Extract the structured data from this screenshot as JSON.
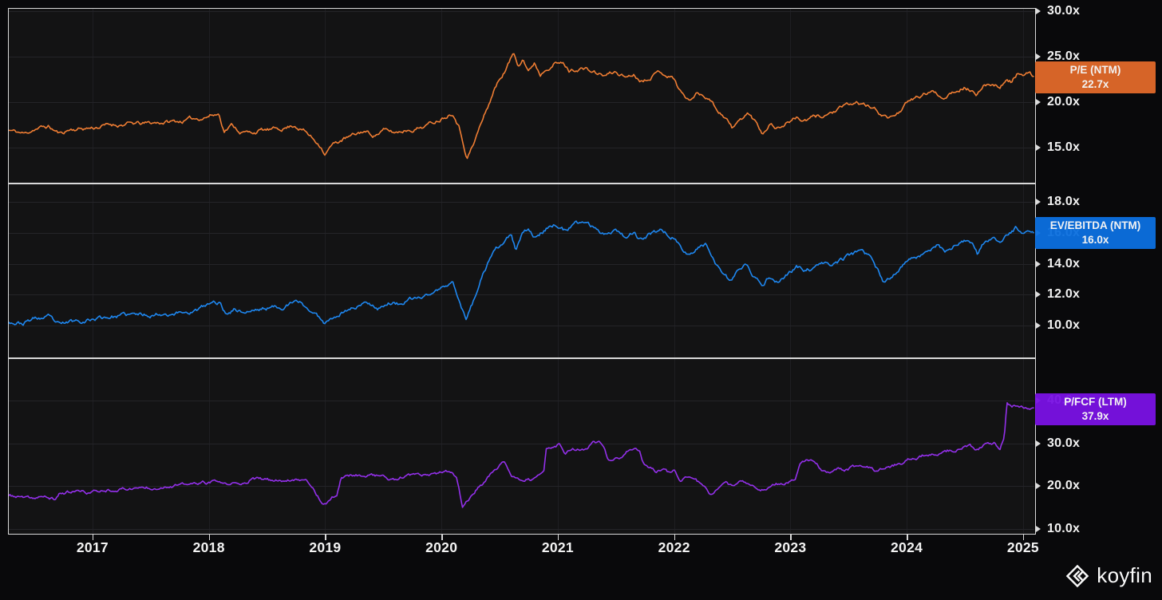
{
  "watermark": {
    "brand": "koyfin"
  },
  "x_axis": {
    "xlim": [
      2016.28,
      2025.09
    ],
    "ticks": [
      {
        "v": 2017,
        "label": "2017"
      },
      {
        "v": 2018,
        "label": "2018"
      },
      {
        "v": 2019,
        "label": "2019"
      },
      {
        "v": 2020,
        "label": "2020"
      },
      {
        "v": 2021,
        "label": "2021"
      },
      {
        "v": 2022,
        "label": "2022"
      },
      {
        "v": 2023,
        "label": "2023"
      },
      {
        "v": 2024,
        "label": "2024"
      },
      {
        "v": 2025,
        "label": "2025"
      }
    ]
  },
  "chart_data": [
    {
      "type": "line",
      "name": "P/E (NTM)",
      "color": "#ef7d33",
      "badge": {
        "bg": "#e2692a",
        "label": "P/E (NTM)",
        "value": "22.7x"
      },
      "current": 22.7,
      "ylim": [
        11.14,
        30.35
      ],
      "y_ticks": [
        {
          "v": 30,
          "label": "30.0x"
        },
        {
          "v": 25,
          "label": "25.0x"
        },
        {
          "v": 20,
          "label": "20.0x"
        },
        {
          "v": 15,
          "label": "15.0x"
        }
      ],
      "anchors_x": [
        2016.28,
        2016.42,
        2016.5,
        2016.62,
        2016.72,
        2016.8,
        2016.9,
        2017.0,
        2017.15,
        2017.3,
        2017.45,
        2017.6,
        2017.75,
        2017.9,
        2018.02,
        2018.09,
        2018.13,
        2018.2,
        2018.27,
        2018.35,
        2018.45,
        2018.55,
        2018.65,
        2018.74,
        2018.82,
        2018.9,
        2018.96,
        2019.0,
        2019.05,
        2019.15,
        2019.25,
        2019.33,
        2019.42,
        2019.5,
        2019.6,
        2019.7,
        2019.8,
        2019.9,
        2020.0,
        2020.1,
        2020.15,
        2020.22,
        2020.28,
        2020.33,
        2020.4,
        2020.45,
        2020.5,
        2020.56,
        2020.62,
        2020.66,
        2020.7,
        2020.75,
        2020.8,
        2020.85,
        2020.9,
        2020.97,
        2021.05,
        2021.1,
        2021.2,
        2021.3,
        2021.4,
        2021.5,
        2021.58,
        2021.65,
        2021.73,
        2021.8,
        2021.88,
        2021.95,
        2022.0,
        2022.05,
        2022.12,
        2022.2,
        2022.3,
        2022.37,
        2022.45,
        2022.5,
        2022.57,
        2022.63,
        2022.7,
        2022.76,
        2022.82,
        2022.9,
        2022.97,
        2023.05,
        2023.13,
        2023.2,
        2023.3,
        2023.4,
        2023.5,
        2023.58,
        2023.65,
        2023.72,
        2023.8,
        2023.86,
        2023.93,
        2024.0,
        2024.08,
        2024.16,
        2024.25,
        2024.3,
        2024.4,
        2024.5,
        2024.57,
        2024.6,
        2024.67,
        2024.73,
        2024.8,
        2024.85,
        2024.9,
        2024.95,
        2025.0,
        2025.05,
        2025.09
      ],
      "anchors_y": [
        16.9,
        16.5,
        17.1,
        17.3,
        16.5,
        17.0,
        17.1,
        17.2,
        17.5,
        17.6,
        17.6,
        17.8,
        17.9,
        18.2,
        18.6,
        18.7,
        16.9,
        17.5,
        16.8,
        16.6,
        16.9,
        16.9,
        17.2,
        17.5,
        16.9,
        15.9,
        15.3,
        14.4,
        15.2,
        15.9,
        16.3,
        16.8,
        16.4,
        16.9,
        16.6,
        17.0,
        17.2,
        17.6,
        18.3,
        19.0,
        17.5,
        14.0,
        15.5,
        17.3,
        19.5,
        21.3,
        22.5,
        23.8,
        25.4,
        24.2,
        25.0,
        23.4,
        24.4,
        23.1,
        23.9,
        24.4,
        24.2,
        23.4,
        23.8,
        23.3,
        22.9,
        23.3,
        22.8,
        23.1,
        22.4,
        23.0,
        23.4,
        23.0,
        22.6,
        21.3,
        20.2,
        21.0,
        20.6,
        19.2,
        18.3,
        17.1,
        18.0,
        18.8,
        17.8,
        16.6,
        17.7,
        17.2,
        17.8,
        18.3,
        17.9,
        18.3,
        18.6,
        19.1,
        19.6,
        19.9,
        19.6,
        19.2,
        18.6,
        18.2,
        19.0,
        19.8,
        20.4,
        20.9,
        21.1,
        20.5,
        21.3,
        21.8,
        21.2,
        20.4,
        21.9,
        22.1,
        21.8,
        22.4,
        22.2,
        23.2,
        22.9,
        23.0,
        22.7
      ]
    },
    {
      "type": "line",
      "name": "EV/EBITDA (NTM)",
      "color": "#1e87f0",
      "badge": {
        "bg": "#0c70e0",
        "label": "EV/EBITDA (NTM)",
        "value": "16.0x"
      },
      "current": 16.0,
      "ylim": [
        7.94,
        19.19
      ],
      "y_ticks": [
        {
          "v": 18,
          "label": "18.0x"
        },
        {
          "v": 16,
          "label": "16.0x"
        },
        {
          "v": 14,
          "label": "14.0x"
        },
        {
          "v": 12,
          "label": "12.0x"
        },
        {
          "v": 10,
          "label": "10.0x"
        }
      ],
      "anchors_x": [
        2016.28,
        2016.4,
        2016.5,
        2016.62,
        2016.72,
        2016.8,
        2016.9,
        2017.0,
        2017.15,
        2017.3,
        2017.45,
        2017.6,
        2017.75,
        2017.9,
        2018.02,
        2018.09,
        2018.14,
        2018.22,
        2018.3,
        2018.4,
        2018.5,
        2018.6,
        2018.7,
        2018.78,
        2018.85,
        2018.93,
        2019.0,
        2019.08,
        2019.18,
        2019.28,
        2019.38,
        2019.45,
        2019.55,
        2019.63,
        2019.72,
        2019.82,
        2019.92,
        2020.0,
        2020.1,
        2020.15,
        2020.21,
        2020.27,
        2020.33,
        2020.4,
        2020.47,
        2020.53,
        2020.6,
        2020.64,
        2020.7,
        2020.75,
        2020.8,
        2020.87,
        2020.94,
        2021.0,
        2021.07,
        2021.15,
        2021.25,
        2021.33,
        2021.42,
        2021.5,
        2021.58,
        2021.65,
        2021.72,
        2021.8,
        2021.88,
        2021.95,
        2022.0,
        2022.06,
        2022.12,
        2022.2,
        2022.28,
        2022.35,
        2022.42,
        2022.48,
        2022.55,
        2022.62,
        2022.68,
        2022.75,
        2022.82,
        2022.9,
        2022.97,
        2023.05,
        2023.12,
        2023.2,
        2023.3,
        2023.4,
        2023.5,
        2023.58,
        2023.65,
        2023.72,
        2023.81,
        2023.88,
        2023.95,
        2024.02,
        2024.1,
        2024.18,
        2024.27,
        2024.33,
        2024.42,
        2024.5,
        2024.57,
        2024.61,
        2024.68,
        2024.75,
        2024.82,
        2024.88,
        2024.94,
        2025.0,
        2025.05,
        2025.09
      ],
      "anchors_y": [
        10.3,
        10.15,
        10.45,
        10.5,
        9.95,
        10.2,
        10.35,
        10.45,
        10.6,
        10.65,
        10.7,
        10.8,
        10.85,
        11.0,
        11.4,
        11.5,
        10.8,
        11.1,
        10.9,
        11.0,
        11.15,
        11.2,
        11.4,
        11.5,
        11.1,
        10.6,
        10.2,
        10.7,
        11.0,
        11.3,
        11.5,
        11.2,
        11.5,
        11.4,
        11.6,
        11.8,
        12.1,
        12.4,
        12.7,
        11.8,
        10.4,
        11.5,
        12.8,
        14.0,
        14.8,
        15.3,
        15.8,
        14.8,
        15.9,
        16.3,
        15.7,
        16.1,
        16.5,
        16.6,
        16.1,
        16.5,
        16.7,
        16.2,
        16.0,
        16.3,
        15.8,
        16.1,
        15.5,
        15.9,
        16.2,
        15.9,
        15.8,
        15.0,
        14.5,
        15.1,
        15.2,
        14.2,
        13.5,
        12.9,
        13.5,
        13.9,
        13.2,
        12.5,
        13.2,
        12.9,
        13.3,
        13.8,
        13.5,
        13.7,
        13.9,
        14.1,
        14.5,
        14.7,
        14.5,
        14.1,
        12.7,
        13.2,
        13.9,
        14.2,
        14.5,
        14.9,
        15.3,
        14.8,
        15.2,
        15.5,
        15.0,
        14.5,
        15.5,
        15.6,
        15.3,
        15.8,
        16.3,
        15.9,
        16.2,
        16.0
      ]
    },
    {
      "type": "line",
      "name": "P/FCF (LTM)",
      "color": "#9330ea",
      "badge": {
        "bg": "#7a12e5",
        "label": "P/FCF (LTM)",
        "value": "37.9x"
      },
      "current": 37.9,
      "ylim": [
        8.88,
        49.88
      ],
      "y_ticks": [
        {
          "v": 40,
          "label": "40.0x"
        },
        {
          "v": 30,
          "label": "30.0x"
        },
        {
          "v": 20,
          "label": "20.0x"
        },
        {
          "v": 10,
          "label": "10.0x"
        }
      ],
      "anchors_x": [
        2016.28,
        2016.4,
        2016.47,
        2016.55,
        2016.62,
        2016.68,
        2016.72,
        2016.8,
        2016.88,
        2016.95,
        2017.05,
        2017.15,
        2017.25,
        2017.35,
        2017.45,
        2017.55,
        2017.62,
        2017.7,
        2017.8,
        2017.9,
        2018.0,
        2018.08,
        2018.14,
        2018.2,
        2018.28,
        2018.35,
        2018.42,
        2018.5,
        2018.55,
        2018.6,
        2018.68,
        2018.75,
        2018.8,
        2018.85,
        2018.9,
        2018.96,
        2019.0,
        2019.05,
        2019.1,
        2019.14,
        2019.2,
        2019.28,
        2019.35,
        2019.42,
        2019.5,
        2019.55,
        2019.6,
        2019.65,
        2019.72,
        2019.8,
        2019.88,
        2019.95,
        2020.02,
        2020.08,
        2020.13,
        2020.18,
        2020.24,
        2020.3,
        2020.36,
        2020.42,
        2020.47,
        2020.52,
        2020.56,
        2020.6,
        2020.66,
        2020.72,
        2020.78,
        2020.84,
        2020.88,
        2020.9,
        2020.96,
        2021.02,
        2021.06,
        2021.12,
        2021.18,
        2021.25,
        2021.3,
        2021.35,
        2021.4,
        2021.44,
        2021.5,
        2021.55,
        2021.6,
        2021.65,
        2021.7,
        2021.74,
        2021.8,
        2021.85,
        2021.9,
        2021.95,
        2022.0,
        2022.05,
        2022.1,
        2022.16,
        2022.22,
        2022.28,
        2022.32,
        2022.38,
        2022.44,
        2022.5,
        2022.56,
        2022.62,
        2022.68,
        2022.74,
        2022.8,
        2022.86,
        2022.92,
        2022.98,
        2023.04,
        2023.08,
        2023.14,
        2023.2,
        2023.28,
        2023.34,
        2023.4,
        2023.46,
        2023.52,
        2023.6,
        2023.66,
        2023.74,
        2023.8,
        2023.88,
        2023.95,
        2024.02,
        2024.1,
        2024.18,
        2024.24,
        2024.3,
        2024.36,
        2024.42,
        2024.48,
        2024.54,
        2024.6,
        2024.66,
        2024.7,
        2024.76,
        2024.8,
        2024.84,
        2024.86,
        2024.9,
        2024.94,
        2025.0,
        2025.05,
        2025.09
      ],
      "anchors_y": [
        17.8,
        17.3,
        16.8,
        17.6,
        17.2,
        16.9,
        18.4,
        18.6,
        18.8,
        18.5,
        18.8,
        19.3,
        19.4,
        19.6,
        19.7,
        19.9,
        20.2,
        20.3,
        20.2,
        20.6,
        20.8,
        21.0,
        20.2,
        20.6,
        20.1,
        21.5,
        21.6,
        21.4,
        21.0,
        21.4,
        21.5,
        21.9,
        21.7,
        21.2,
        19.5,
        16.8,
        16.0,
        17.2,
        18.1,
        22.3,
        22.5,
        22.7,
        22.5,
        22.6,
        22.4,
        21.5,
        21.2,
        21.9,
        22.2,
        22.3,
        22.4,
        22.6,
        23.0,
        23.3,
        22.0,
        15.3,
        17.0,
        19.3,
        20.5,
        22.5,
        24.0,
        25.8,
        25.0,
        21.8,
        21.5,
        22.0,
        21.6,
        22.3,
        23.3,
        28.4,
        28.8,
        29.8,
        27.2,
        28.4,
        28.6,
        28.3,
        29.9,
        30.2,
        28.8,
        25.8,
        26.3,
        26.6,
        28.0,
        28.3,
        28.3,
        24.8,
        24.3,
        23.6,
        24.2,
        23.2,
        23.6,
        21.7,
        22.3,
        21.6,
        20.5,
        19.3,
        18.2,
        19.5,
        20.3,
        19.9,
        20.6,
        20.8,
        20.3,
        19.5,
        19.3,
        20.3,
        20.6,
        21.3,
        21.8,
        25.6,
        25.9,
        25.4,
        23.5,
        23.3,
        24.1,
        23.8,
        24.3,
        24.5,
        24.2,
        23.6,
        24.3,
        24.8,
        25.5,
        26.2,
        26.7,
        27.6,
        27.2,
        27.9,
        28.3,
        28.0,
        29.0,
        29.5,
        28.2,
        29.3,
        30.0,
        30.3,
        28.6,
        31.5,
        39.3,
        38.6,
        39.0,
        38.8,
        38.4,
        37.9
      ]
    }
  ]
}
